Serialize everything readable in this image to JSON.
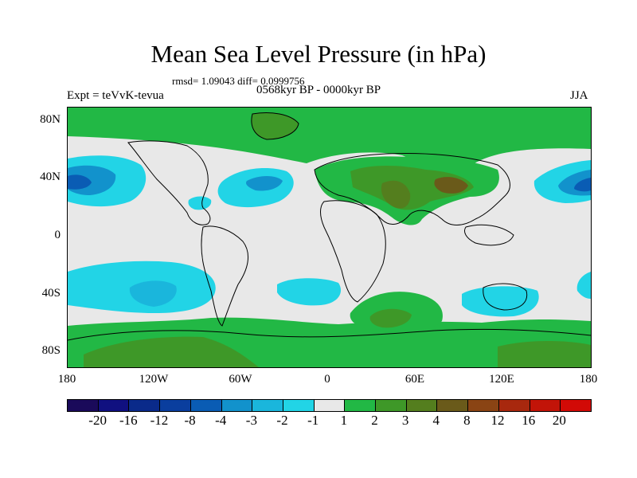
{
  "title": "Mean Sea Level Pressure (in hPa)",
  "stats": "rmsd= 1.09043 diff= 0.0999756",
  "experiment": "Expt = teVvK-tevua",
  "period": "0568kyr BP - 0000kyr BP",
  "season": "JJA",
  "lat_labels": [
    "80N",
    "40N",
    "0",
    "40S",
    "80S"
  ],
  "lon_labels": [
    "180",
    "120W",
    "60W",
    "0",
    "60E",
    "120E",
    "180"
  ],
  "colorbar": {
    "labels": [
      "-20",
      "-16",
      "-12",
      "-8",
      "-4",
      "-3",
      "-2",
      "-1",
      "1",
      "2",
      "3",
      "4",
      "8",
      "12",
      "16",
      "20"
    ],
    "colors": [
      "#1a0a5a",
      "#101080",
      "#0a2a8a",
      "#0a3e9e",
      "#0a5cb4",
      "#1292cc",
      "#1ab6dc",
      "#22d4e6",
      "#e8e8e8",
      "#22b845",
      "#3e9828",
      "#547e1e",
      "#6a5a1a",
      "#8a4414",
      "#a8280e",
      "#c21408",
      "#d20a06"
    ]
  },
  "colors": {
    "neutral": "#e8e8e8",
    "positive_1_2": "#22b845",
    "positive_2_3": "#3e9828",
    "positive_3_4": "#547e1e",
    "positive_4_8": "#6a5a1a",
    "negative_1_2": "#22d4e6",
    "negative_2_3": "#1ab6dc",
    "negative_3_4": "#1292cc",
    "negative_4_8": "#0a5cb4"
  }
}
